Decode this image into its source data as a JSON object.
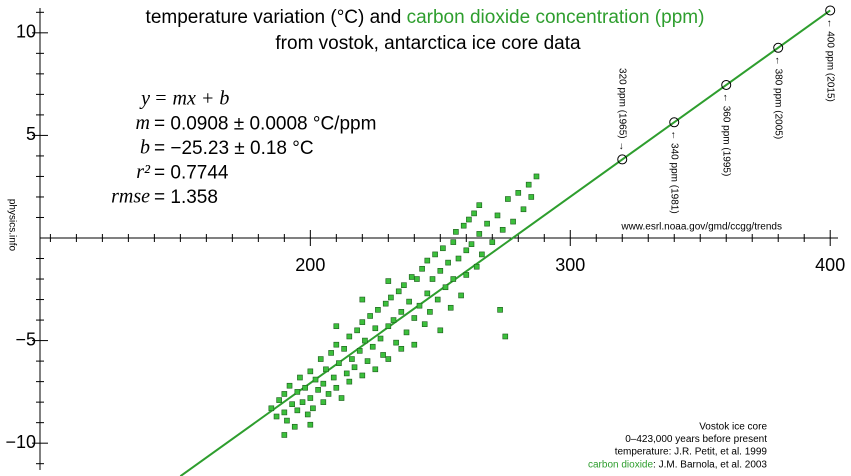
{
  "chart_data": {
    "type": "scatter",
    "title_parts": [
      {
        "text": "temperature variation (°C) and ",
        "color": "#000000"
      },
      {
        "text": "carbon dioxide concentration (ppm)",
        "color": "#2e9e2e"
      }
    ],
    "subtitle": "from vostok, antarctica ice core data",
    "xlim": [
      96,
      408
    ],
    "ylim": [
      -11.6,
      11.6
    ],
    "xticks": [
      200,
      300,
      400
    ],
    "yticks": [
      {
        "value": -10,
        "label": "−10"
      },
      {
        "value": -5,
        "label": "−5"
      },
      5,
      10
    ],
    "xminor_ticks": [
      100,
      110,
      120,
      130,
      140,
      150,
      160,
      170,
      180,
      190,
      210,
      220,
      230,
      240,
      250,
      260,
      270,
      280,
      290,
      310,
      320,
      330,
      340,
      350,
      360,
      370,
      380,
      390
    ],
    "yminor_ticks": [
      -11,
      -9,
      -8,
      -7,
      -6,
      -4,
      -3,
      -2,
      -1,
      1,
      2,
      3,
      4,
      6,
      7,
      8,
      9,
      11
    ],
    "series": [
      {
        "color": "#3cbf3c",
        "x": [
          185,
          187,
          188,
          190,
          190,
          191,
          192,
          193,
          194,
          195,
          195,
          196,
          197,
          198,
          199,
          200,
          200,
          201,
          202,
          203,
          204,
          205,
          205,
          206,
          207,
          208,
          209,
          210,
          210,
          211,
          212,
          213,
          214,
          215,
          215,
          216,
          217,
          218,
          219,
          220,
          220,
          221,
          222,
          223,
          224,
          225,
          225,
          226,
          227,
          228,
          229,
          230,
          230,
          231,
          232,
          233,
          234,
          235,
          235,
          236,
          237,
          238,
          239,
          240,
          240,
          241,
          242,
          243,
          244,
          245,
          245,
          246,
          247,
          248,
          249,
          250,
          250,
          251,
          252,
          253,
          254,
          255,
          255,
          256,
          257,
          258,
          259,
          260,
          260,
          261,
          262,
          263,
          264,
          265,
          265,
          266,
          268,
          270,
          272,
          274,
          276,
          278,
          280,
          282,
          284,
          285,
          287,
          273,
          275,
          190,
          200,
          210,
          220,
          230
        ],
        "values": [
          -8.3,
          -8.7,
          -7.9,
          -8.5,
          -7.6,
          -8.9,
          -7.2,
          -8.1,
          -9.2,
          -7.5,
          -8.4,
          -6.8,
          -8.0,
          -7.3,
          -8.6,
          -6.5,
          -7.8,
          -8.3,
          -6.9,
          -7.4,
          -5.9,
          -7.1,
          -8.0,
          -6.4,
          -7.6,
          -5.6,
          -6.8,
          -7.3,
          -5.2,
          -6.1,
          -7.8,
          -5.4,
          -6.6,
          -4.8,
          -7.0,
          -5.9,
          -6.3,
          -4.5,
          -5.5,
          -6.7,
          -4.1,
          -5.0,
          -6.0,
          -3.8,
          -5.3,
          -4.4,
          -6.4,
          -3.5,
          -4.9,
          -5.7,
          -3.2,
          -4.3,
          -5.9,
          -2.9,
          -4.0,
          -5.1,
          -2.6,
          -3.6,
          -5.4,
          -2.3,
          -4.6,
          -3.1,
          -1.9,
          -3.9,
          -5.2,
          -2.0,
          -3.3,
          -1.5,
          -4.2,
          -2.7,
          -1.1,
          -3.6,
          -2.0,
          -0.8,
          -3.0,
          -1.6,
          -4.5,
          -0.5,
          -2.4,
          -1.2,
          -3.4,
          -0.2,
          -2.0,
          0.3,
          -1.0,
          -2.8,
          0.6,
          -0.6,
          -1.8,
          0.9,
          -0.3,
          1.2,
          -1.4,
          0.2,
          1.6,
          -0.8,
          0.7,
          -0.2,
          1.1,
          0.4,
          1.9,
          0.8,
          2.2,
          1.4,
          2.6,
          2.0,
          3.0,
          -3.5,
          -4.8,
          -9.6,
          -9.1,
          -4.3,
          -3.0,
          -2.1
        ]
      }
    ],
    "fit_line": {
      "color": "#2e9e2e",
      "x": [
        150,
        400
      ],
      "y": [
        -11.61,
        11.09
      ]
    },
    "fit_text": [
      {
        "lhs": "y",
        "rhs": "= mx + b"
      },
      {
        "lhs": "m",
        "rhs": "= 0.0908 ± 0.0008 °C/ppm"
      },
      {
        "lhs": "b",
        "rhs": "= −25.23 ± 0.18 °C"
      },
      {
        "lhs": "r²",
        "rhs": "= 0.7744"
      },
      {
        "lhs": "rmse",
        "rhs": "= 1.358"
      }
    ],
    "markers": [
      {
        "x": 320,
        "y": 3.83,
        "label": "320 ppm (1965) →",
        "side": "above"
      },
      {
        "x": 340,
        "y": 5.64,
        "label": "← 340 ppm (1981)",
        "side": "below"
      },
      {
        "x": 360,
        "y": 7.46,
        "label": "← 360 ppm (1995)",
        "side": "below"
      },
      {
        "x": 380,
        "y": 9.27,
        "label": "← 380 ppm (2005)",
        "side": "below"
      },
      {
        "x": 400,
        "y": 11.09,
        "label": "← 400 ppm (2015)",
        "side": "below"
      }
    ],
    "url": "www.esrl.noaa.gov/gmd/ccgg/trends",
    "watermark": "physics.info",
    "source": [
      "Vostok ice core",
      "0–423,000 years before present",
      "temperature: J.R. Petit, et al. 1999"
    ],
    "source_co2": [
      "carbon dioxide",
      ": J.M. Barnola, et al. 2003"
    ]
  }
}
